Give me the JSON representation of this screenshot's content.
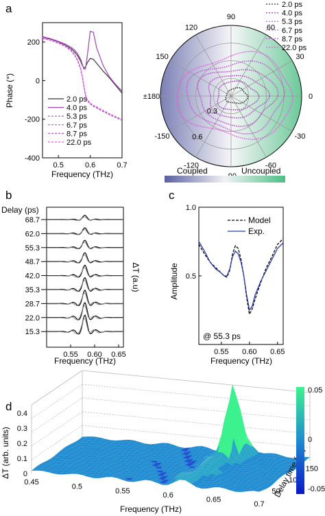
{
  "panels": {
    "a": "a",
    "b": "b",
    "c": "c",
    "d": "d"
  },
  "chart_data": [
    {
      "type": "line",
      "panel": "a",
      "xlabel": "Frequency (THz)",
      "ylabel": "Phase (°)",
      "xlim": [
        0.45,
        0.7
      ],
      "ylim": [
        -400,
        300
      ],
      "xticks": [
        "0.5",
        "0.6",
        "0.7"
      ],
      "yticks": [
        "200",
        "0",
        "-200",
        "-400"
      ],
      "legend_position": "bottom-left",
      "x": [
        0.45,
        0.48,
        0.5,
        0.52,
        0.54,
        0.55,
        0.56,
        0.57,
        0.575,
        0.58,
        0.585,
        0.59,
        0.6,
        0.61,
        0.62,
        0.64,
        0.66,
        0.68,
        0.7
      ],
      "series": [
        {
          "name": "2.0 ps",
          "style": "solid",
          "color": "#333333",
          "values": [
            225,
            212,
            200,
            185,
            165,
            150,
            130,
            100,
            80,
            65,
            70,
            90,
            115,
            110,
            90,
            50,
            15,
            -25,
            -65
          ]
        },
        {
          "name": "4.0 ps",
          "style": "solid",
          "color": "#9a45b0",
          "values": [
            228,
            215,
            203,
            190,
            172,
            160,
            140,
            110,
            85,
            60,
            60,
            120,
            255,
            250,
            170,
            80,
            20,
            -20,
            -55
          ]
        },
        {
          "name": "5.3 ps",
          "style": "dashed",
          "color": "#b04cc7",
          "values": [
            220,
            208,
            195,
            180,
            155,
            135,
            105,
            60,
            20,
            -30,
            -75,
            -100,
            -120,
            -132,
            -140,
            -158,
            -175,
            -190,
            -205
          ]
        },
        {
          "name": "6.7 ps",
          "style": "dashed",
          "color": "#b852cc",
          "values": [
            222,
            209,
            196,
            181,
            157,
            137,
            107,
            62,
            22,
            -28,
            -73,
            -98,
            -118,
            -130,
            -138,
            -156,
            -173,
            -188,
            -203
          ]
        },
        {
          "name": "8.7 ps",
          "style": "dashed",
          "color": "#c85ad6",
          "values": [
            218,
            206,
            193,
            178,
            153,
            133,
            103,
            58,
            18,
            -32,
            -77,
            -102,
            -122,
            -134,
            -142,
            -160,
            -177,
            -192,
            -207
          ]
        },
        {
          "name": "22.0 ps",
          "style": "dashed",
          "color": "#e060e6",
          "values": [
            224,
            211,
            198,
            183,
            159,
            139,
            109,
            64,
            24,
            -26,
            -71,
            -96,
            -116,
            -128,
            -136,
            -154,
            -171,
            -186,
            -201
          ]
        }
      ]
    },
    {
      "type": "polar",
      "panel": "a",
      "angle_ticks": [
        "90",
        "60",
        "30",
        "0",
        "-30",
        "-60",
        "-90",
        "-120",
        "-150",
        "±180",
        "150",
        "120"
      ],
      "radial_ticks": [
        "0.3",
        "0.6"
      ],
      "colorbar": {
        "left_label": "Coupled",
        "right_label": "Uncoupled",
        "left_color": "#5a5f9f",
        "mid_color": "#f2f2f5",
        "right_color": "#4cbf86"
      },
      "series": [
        {
          "name": "2.0 ps",
          "color": "#333333",
          "style": "dashed",
          "scale": 0.16
        },
        {
          "name": "4.0 ps",
          "color": "#9a45b0",
          "style": "dashed",
          "scale": 0.3
        },
        {
          "name": "5.3 ps",
          "color": "#b04cc7",
          "style": "dashed",
          "scale": 0.44
        },
        {
          "name": "6.7 ps",
          "color": "#b852cc",
          "style": "dashed",
          "scale": 0.58
        },
        {
          "name": "8.7 ps",
          "color": "#c85ad6",
          "style": "dashed",
          "scale": 0.72
        },
        {
          "name": "22.0 ps",
          "color": "#e060e6",
          "style": "dashed",
          "scale": 0.86
        }
      ]
    },
    {
      "type": "line",
      "panel": "b",
      "xlabel": "Frequency (THz)",
      "ylabel": "ΔT (a.u)",
      "offset_label": "Delay (ps)",
      "xlim": [
        0.5,
        0.66
      ],
      "xticks": [
        "0.55",
        "0.60",
        "0.65"
      ],
      "delays": [
        "68.7",
        "62.0",
        "55.3",
        "48.7",
        "42.0",
        "35.3",
        "28.7",
        "22.0",
        "15.3"
      ]
    },
    {
      "type": "line",
      "panel": "c",
      "xlabel": "Frequency (THz)",
      "ylabel": "Amplitude",
      "annotation": "@ 55.3 ps",
      "xlim": [
        0.51,
        0.66
      ],
      "ylim": [
        0.0,
        1.0
      ],
      "xticks": [
        "0.55",
        "0.60",
        "0.65"
      ],
      "yticks": [
        "1.0",
        "0.5"
      ],
      "legend_position": "top-right",
      "x": [
        0.51,
        0.52,
        0.53,
        0.54,
        0.55,
        0.555,
        0.56,
        0.565,
        0.57,
        0.575,
        0.58,
        0.585,
        0.59,
        0.595,
        0.6,
        0.605,
        0.61,
        0.62,
        0.63,
        0.64,
        0.65,
        0.66
      ],
      "series": [
        {
          "name": "Model",
          "style": "dashed",
          "color": "#000000",
          "values": [
            0.73,
            0.66,
            0.6,
            0.56,
            0.52,
            0.5,
            0.49,
            0.54,
            0.66,
            0.72,
            0.7,
            0.62,
            0.5,
            0.34,
            0.22,
            0.26,
            0.33,
            0.45,
            0.56,
            0.64,
            0.73,
            0.77
          ]
        },
        {
          "name": "Exp.",
          "style": "solid",
          "color": "#2b3aa8",
          "values": [
            0.75,
            0.68,
            0.6,
            0.55,
            0.52,
            0.5,
            0.5,
            0.55,
            0.64,
            0.68,
            0.66,
            0.6,
            0.5,
            0.36,
            0.25,
            0.28,
            0.36,
            0.46,
            0.54,
            0.62,
            0.7,
            0.74
          ]
        }
      ]
    },
    {
      "type": "surface",
      "panel": "d",
      "xlabel": "Frequency (THz)",
      "ylabel": "Delay time (ps)",
      "zlabel": "ΔT (arb. units)",
      "xticks": [
        "0.45",
        "0.5",
        "0.55",
        "0.6",
        "0.65",
        "0.7"
      ],
      "yticks": [
        "50",
        "100",
        "150"
      ],
      "zticks": [
        "0.4",
        "0.3",
        "0.2",
        "0.1",
        "0"
      ],
      "colorbar": {
        "ticks": [
          "0.05",
          "0",
          "-0.05"
        ],
        "low_color": "#0a18c8",
        "mid_color": "#1f8bd0",
        "high_color": "#3cf28e"
      }
    }
  ]
}
